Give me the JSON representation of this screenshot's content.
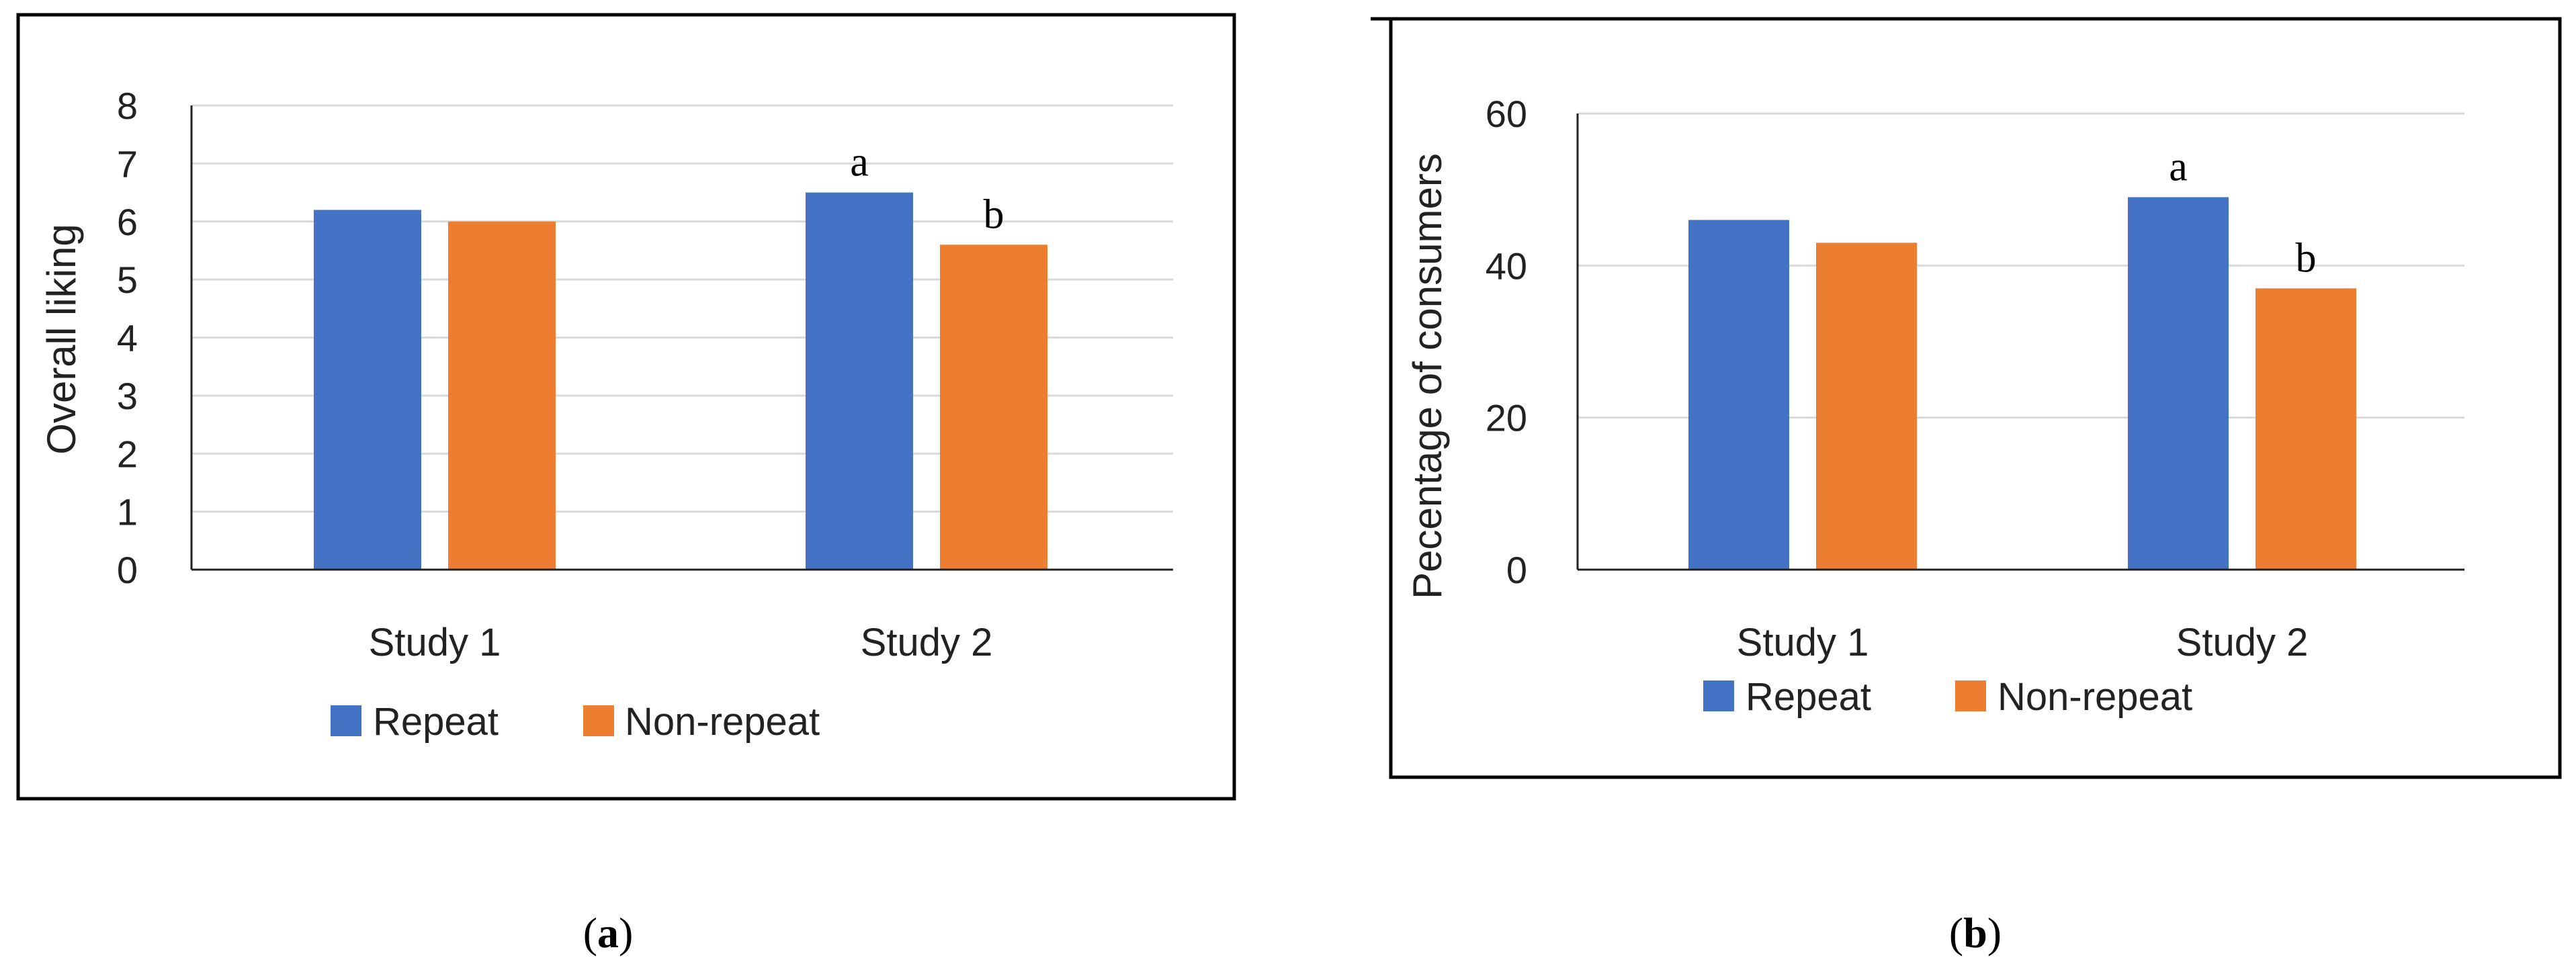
{
  "colors": {
    "repeat": "#4472C4",
    "non_repeat": "#ED7D31",
    "gridline": "#D9D9D9",
    "axis": "#222222",
    "frame": "#000000"
  },
  "chart_data": [
    {
      "type": "bar",
      "panel": "a",
      "categories": [
        "Study 1",
        "Study 2"
      ],
      "series": [
        {
          "name": "Repeat",
          "values": [
            6.2,
            6.5
          ]
        },
        {
          "name": "Non-repeat",
          "values": [
            6.0,
            5.6
          ]
        }
      ],
      "annotations": [
        {
          "category": "Study 2",
          "series": "Repeat",
          "text": "a"
        },
        {
          "category": "Study 2",
          "series": "Non-repeat",
          "text": "b"
        }
      ],
      "title": "",
      "xlabel": "",
      "ylabel": "Overall liking",
      "ylim": [
        0,
        8
      ],
      "yticks": [
        "0",
        "1",
        "2",
        "3",
        "4",
        "5",
        "6",
        "7",
        "8"
      ],
      "grid": true,
      "legend": "bottom",
      "panel_label": {
        "open": "(",
        "letter": "a",
        "close": ")"
      }
    },
    {
      "type": "bar",
      "panel": "b",
      "categories": [
        "Study 1",
        "Study 2"
      ],
      "series": [
        {
          "name": "Repeat",
          "values": [
            46,
            49
          ]
        },
        {
          "name": "Non-repeat",
          "values": [
            43,
            37
          ]
        }
      ],
      "annotations": [
        {
          "category": "Study 2",
          "series": "Repeat",
          "text": "a"
        },
        {
          "category": "Study 2",
          "series": "Non-repeat",
          "text": "b"
        }
      ],
      "title": "",
      "xlabel": "",
      "ylabel": "Pecentage of consumers",
      "ylim": [
        0,
        60
      ],
      "yticks": [
        "0",
        "20",
        "40",
        "60"
      ],
      "grid": true,
      "legend": "bottom",
      "panel_label": {
        "open": "(",
        "letter": "b",
        "close": ")"
      }
    }
  ]
}
